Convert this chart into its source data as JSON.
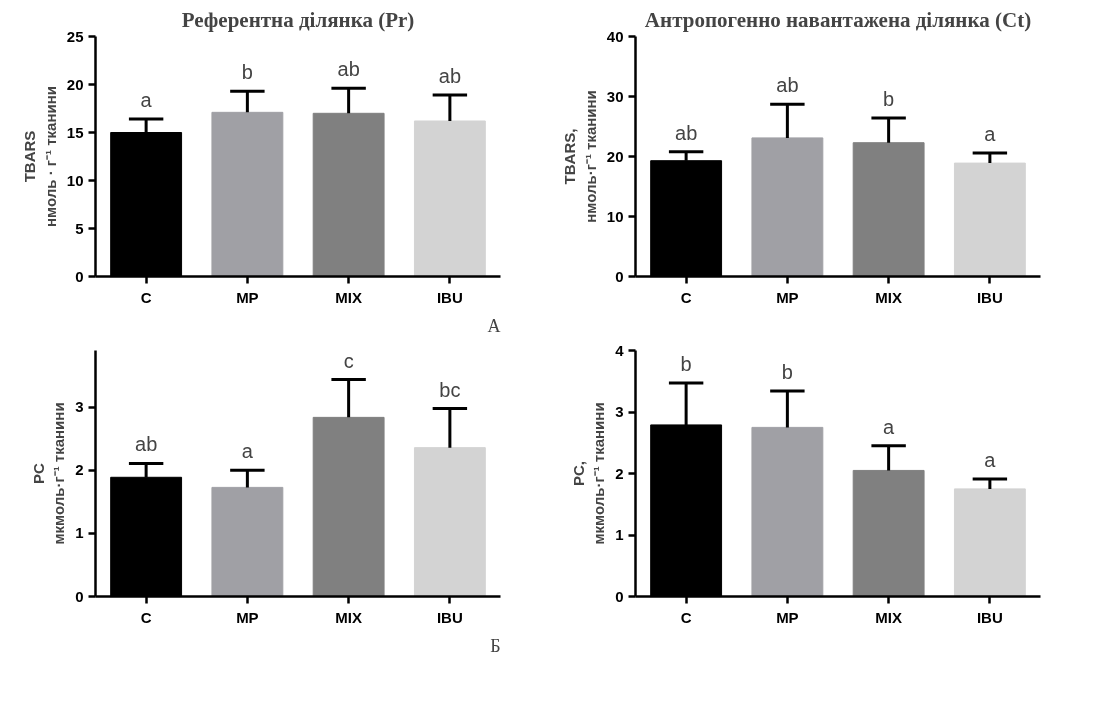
{
  "chart_data": [
    {
      "type": "bar",
      "title": "Референтна ділянка (Pr)",
      "ylabel": "TBARS\nнмоль · г⁻¹ тканини",
      "categories": [
        "C",
        "MP",
        "MIX",
        "IBU"
      ],
      "values": [
        15.0,
        17.1,
        17.0,
        16.2
      ],
      "colors": [
        "#000000",
        "#a0a0a5",
        "#808080",
        "#d3d3d3"
      ],
      "errors": [
        [
          15.0,
          16.4
        ],
        [
          17.1,
          19.3
        ],
        [
          17.0,
          19.6
        ],
        [
          16.2,
          18.9
        ]
      ],
      "ylim": [
        0,
        25
      ],
      "yticks": [
        0,
        5,
        10,
        15,
        20,
        25
      ],
      "grid": false,
      "annotations": [
        {
          "text": "a",
          "x": "C",
          "y": 16.4
        },
        {
          "text": "b",
          "x": "MP",
          "y": 19.3
        },
        {
          "text": "ab",
          "x": "MIX",
          "y": 19.6
        },
        {
          "text": "ab",
          "x": "IBU",
          "y": 18.9
        },
        "А"
      ]
    },
    {
      "type": "bar",
      "title": "Антропогенно навантажена ділянка (Ct)",
      "ylabel": "TBARS,\nнмоль·г⁻¹ тканини",
      "categories": [
        "C",
        "MP",
        "MIX",
        "IBU"
      ],
      "values": [
        19.3,
        23.1,
        22.3,
        18.9
      ],
      "colors": [
        "#000000",
        "#a0a0a5",
        "#808080",
        "#d3d3d3"
      ],
      "errors": [
        [
          19.3,
          20.8
        ],
        [
          23.1,
          28.7
        ],
        [
          22.3,
          26.4
        ],
        [
          18.9,
          20.6
        ]
      ],
      "ylim": [
        0,
        40
      ],
      "yticks": [
        0,
        10,
        20,
        30,
        40
      ],
      "grid": false,
      "annotations": [
        {
          "text": "ab",
          "x": "C",
          "y": 20.8
        },
        {
          "text": "ab",
          "x": "MP",
          "y": 28.7
        },
        {
          "text": "b",
          "x": "MIX",
          "y": 26.4
        },
        {
          "text": "a",
          "x": "IBU",
          "y": 20.6
        }
      ]
    },
    {
      "type": "bar",
      "ylabel": "PC\nмкмоль·г⁻¹ тканини",
      "categories": [
        "C",
        "MP",
        "MIX",
        "IBU"
      ],
      "values": [
        1.89,
        1.73,
        2.84,
        2.36
      ],
      "colors": [
        "#000000",
        "#a0a0a5",
        "#808080",
        "#d3d3d3"
      ],
      "errors": [
        [
          1.89,
          2.11
        ],
        [
          1.73,
          2.0
        ],
        [
          2.84,
          3.44
        ],
        [
          2.36,
          2.98
        ]
      ],
      "ylim": [
        0,
        3.9
      ],
      "yticks": [
        0,
        1,
        2,
        3
      ],
      "grid": false,
      "annotations": [
        {
          "text": "ab",
          "x": "C",
          "y": 2.11
        },
        {
          "text": "a",
          "x": "MP",
          "y": 2.0
        },
        {
          "text": "c",
          "x": "MIX",
          "y": 3.44
        },
        {
          "text": "bc",
          "x": "IBU",
          "y": 2.98
        },
        "Б"
      ]
    },
    {
      "type": "bar",
      "ylabel": "PC,\nмкмоль·г⁻¹ тканини",
      "categories": [
        "C",
        "MP",
        "MIX",
        "IBU"
      ],
      "values": [
        2.79,
        2.75,
        2.05,
        1.75
      ],
      "colors": [
        "#000000",
        "#a0a0a5",
        "#808080",
        "#d3d3d3"
      ],
      "errors": [
        [
          2.79,
          3.47
        ],
        [
          2.75,
          3.34
        ],
        [
          2.05,
          2.45
        ],
        [
          1.75,
          1.91
        ]
      ],
      "ylim": [
        0,
        4
      ],
      "yticks": [
        0,
        1,
        2,
        3,
        4
      ],
      "grid": false,
      "annotations": [
        {
          "text": "b",
          "x": "C",
          "y": 3.47
        },
        {
          "text": "b",
          "x": "MP",
          "y": 3.34
        },
        {
          "text": "a",
          "x": "MIX",
          "y": 2.45
        },
        {
          "text": "a",
          "x": "IBU",
          "y": 1.91
        }
      ]
    }
  ]
}
